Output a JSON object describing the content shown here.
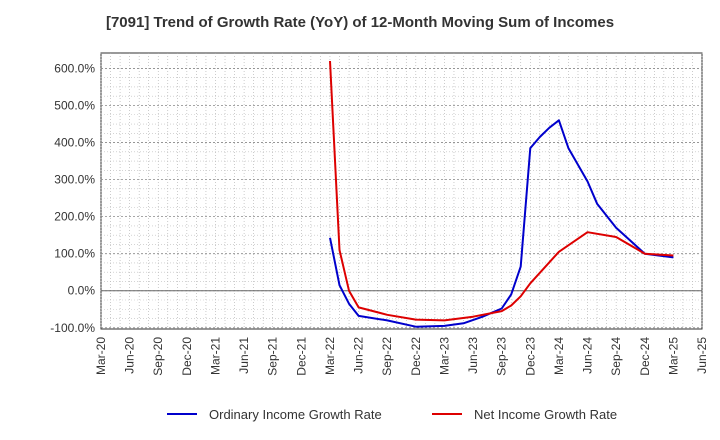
{
  "chart_data": {
    "type": "line",
    "title": "[7091]  Trend of Growth Rate (YoY) of 12-Month Moving Sum of Incomes",
    "xlabel": "",
    "ylabel": "",
    "x_ticks": [
      "Mar-20",
      "Jun-20",
      "Sep-20",
      "Dec-20",
      "Mar-21",
      "Jun-21",
      "Sep-21",
      "Dec-21",
      "Mar-22",
      "Jun-22",
      "Sep-22",
      "Dec-22",
      "Mar-23",
      "Jun-23",
      "Sep-23",
      "Dec-23",
      "Mar-24",
      "Jun-24",
      "Sep-24",
      "Dec-24",
      "Mar-25",
      "Jun-25"
    ],
    "y_ticks": [
      "-100.0%",
      "0.0%",
      "100.0%",
      "200.0%",
      "300.0%",
      "400.0%",
      "500.0%",
      "600.0%"
    ],
    "ylim": [
      -100,
      600
    ],
    "grid": true,
    "legend_position": "bottom",
    "series": [
      {
        "name": "Ordinary Income Growth Rate",
        "color": "#0000cc",
        "x": [
          "2022-03",
          "2022-04",
          "2022-05",
          "2022-06",
          "2022-09",
          "2022-12",
          "2023-03",
          "2023-05",
          "2023-07",
          "2023-09",
          "2023-10",
          "2023-11",
          "2023-12",
          "2024-01",
          "2024-02",
          "2024-03",
          "2024-04",
          "2024-06",
          "2024-07",
          "2024-09",
          "2024-12",
          "2025-03"
        ],
        "values": [
          143,
          15,
          -35,
          -68,
          -80,
          -97,
          -95,
          -88,
          -70,
          -48,
          -10,
          65,
          385,
          415,
          440,
          460,
          385,
          295,
          235,
          170,
          100,
          90
        ]
      },
      {
        "name": "Net Income Growth Rate",
        "color": "#dd0000",
        "x": [
          "2022-03",
          "2022-04",
          "2022-05",
          "2022-06",
          "2022-09",
          "2022-12",
          "2023-03",
          "2023-06",
          "2023-09",
          "2023-10",
          "2023-11",
          "2023-12",
          "2024-03",
          "2024-06",
          "2024-09",
          "2024-12",
          "2025-03"
        ],
        "values": [
          620,
          110,
          0,
          -45,
          -65,
          -78,
          -80,
          -70,
          -55,
          -40,
          -15,
          20,
          105,
          158,
          145,
          100,
          95
        ]
      }
    ]
  }
}
